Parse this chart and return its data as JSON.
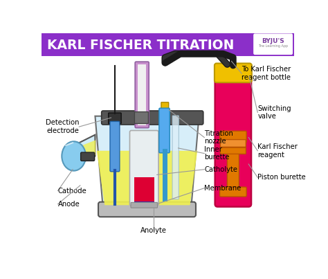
{
  "title": "KARL FISCHER TITRATION",
  "title_bg": "#8B2FC9",
  "title_color": "#FFFFFF",
  "bg_color": "#FFFFFF",
  "labels": {
    "detection_electrode": "Detection\nelectrode",
    "titration_nozzle": "Titration\nnozzle",
    "inner_burette": "Inner\nburette",
    "catholyte": "Catholyte",
    "membrane": "Membrane",
    "anolyte": "Anolyte",
    "cathode": "Cathode",
    "anode": "Anode",
    "switching_valve": "Switching\nvalve",
    "karl_fischer_reagent": "Karl Fischer\nreagent",
    "piston_burette": "Piston burette",
    "to_kf_bottle": "To Karl Fischer\nreagent bottle"
  },
  "colors": {
    "vessel_fill": "#C8E8F4",
    "vessel_outline": "#555555",
    "liquid_yellow": "#F0F050",
    "purple_rod": "#C890CC",
    "blue_electrode": "#5599DD",
    "dark_gray": "#555555",
    "mid_gray": "#808080",
    "light_gray": "#BBBBBB",
    "yellow_connector": "#E8B800",
    "blue_tube": "#55AAEE",
    "inner_tube_fill": "#D8EEF8",
    "red_liquid_kf": "#E8005A",
    "yellow_cap": "#F0C000",
    "orange_piston": "#E07800",
    "cathode_blue": "#88CCEE",
    "red_catholyte": "#DD0033",
    "wire_black": "#1A1A1A",
    "line_color": "#999999",
    "byju_purple": "#7B3F9E",
    "vessel_light_blue": "#D0ECF8"
  }
}
